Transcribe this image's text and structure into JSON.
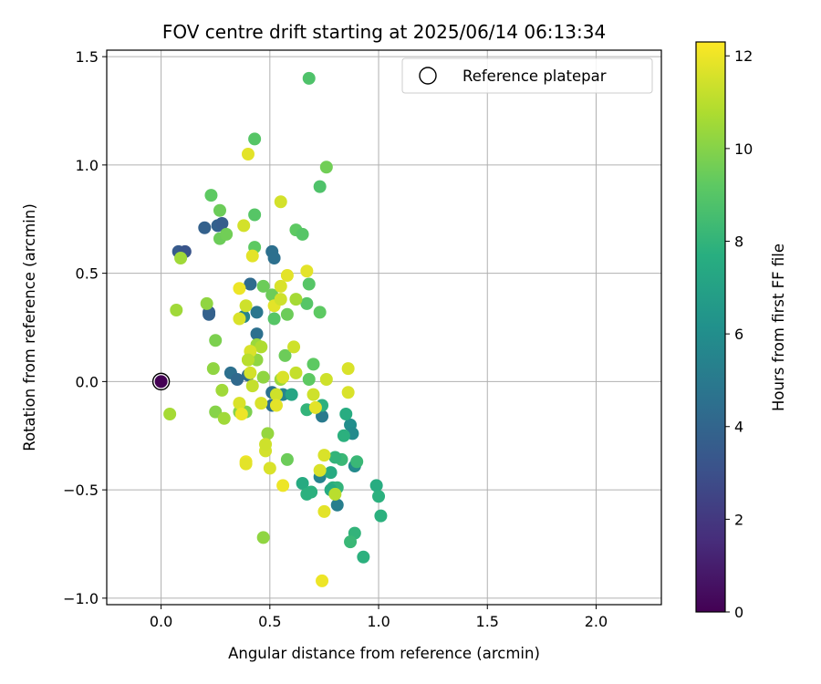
{
  "chart_data": {
    "type": "scatter",
    "title": "FOV centre drift starting at 2025/06/14 06:13:34",
    "xlabel": "Angular distance from reference (arcmin)",
    "ylabel": "Rotation from reference (arcmin)",
    "xlim": [
      -0.25,
      2.3
    ],
    "ylim": [
      -1.03,
      1.53
    ],
    "xticks": [
      0.0,
      0.5,
      1.0,
      1.5,
      2.0
    ],
    "xtick_labels": [
      "0.0",
      "0.5",
      "1.0",
      "1.5",
      "2.0"
    ],
    "yticks": [
      -1.0,
      -0.5,
      0.0,
      0.5,
      1.0,
      1.5
    ],
    "ytick_labels": [
      "−1.0",
      "−0.5",
      "0.0",
      "0.5",
      "1.0",
      "1.5"
    ],
    "grid": true,
    "legend": {
      "placement": "top-right",
      "entries": [
        "Reference platepar"
      ]
    },
    "colorbar": {
      "label": "Hours from first FF file",
      "range": [
        0,
        12.3
      ],
      "ticks": [
        0,
        2,
        4,
        6,
        8,
        10,
        12
      ],
      "tick_labels": [
        "0",
        "2",
        "4",
        "6",
        "8",
        "10",
        "12"
      ],
      "colormap": "viridis"
    },
    "reference_point": {
      "x": 0.0,
      "y": 0.0,
      "hours": 0.0
    },
    "points": [
      [
        0.08,
        0.6,
        3.5
      ],
      [
        0.11,
        0.6,
        3.2
      ],
      [
        0.22,
        0.32,
        3.6
      ],
      [
        0.22,
        0.31,
        3.8
      ],
      [
        0.26,
        0.72,
        3.8
      ],
      [
        0.28,
        0.73,
        3.6
      ],
      [
        0.2,
        0.71,
        3.8
      ],
      [
        0.32,
        0.04,
        4.5
      ],
      [
        0.35,
        0.01,
        4.2
      ],
      [
        0.4,
        0.03,
        4.3
      ],
      [
        0.41,
        0.45,
        3.8
      ],
      [
        0.44,
        0.32,
        4.8
      ],
      [
        0.44,
        0.22,
        4.5
      ],
      [
        0.51,
        0.6,
        4.5
      ],
      [
        0.52,
        0.57,
        4.5
      ],
      [
        0.51,
        -0.05,
        4.6
      ],
      [
        0.51,
        -0.11,
        4.5
      ],
      [
        0.56,
        -0.06,
        5.5
      ],
      [
        0.73,
        -0.44,
        5.5
      ],
      [
        0.74,
        -0.16,
        5.0
      ],
      [
        0.81,
        -0.57,
        5.2
      ],
      [
        0.87,
        -0.2,
        6.0
      ],
      [
        0.89,
        -0.39,
        5.8
      ],
      [
        0.88,
        -0.24,
        5.8
      ],
      [
        0.38,
        0.3,
        5.5
      ],
      [
        0.41,
        0.45,
        4.3
      ],
      [
        0.6,
        -0.06,
        7.2
      ],
      [
        0.65,
        -0.47,
        7.5
      ],
      [
        0.67,
        -0.52,
        7.8
      ],
      [
        0.69,
        -0.51,
        7.8
      ],
      [
        0.67,
        -0.13,
        8.0
      ],
      [
        0.74,
        -0.11,
        7.8
      ],
      [
        0.78,
        -0.42,
        7.5
      ],
      [
        0.79,
        -0.49,
        7.8
      ],
      [
        0.81,
        -0.49,
        8.0
      ],
      [
        0.83,
        -0.36,
        8.2
      ],
      [
        0.84,
        -0.25,
        7.8
      ],
      [
        0.85,
        -0.15,
        7.6
      ],
      [
        0.89,
        -0.7,
        8.0
      ],
      [
        0.87,
        -0.74,
        8.2
      ],
      [
        0.93,
        -0.81,
        7.8
      ],
      [
        0.9,
        -0.37,
        8.2
      ],
      [
        0.99,
        -0.48,
        7.6
      ],
      [
        1.0,
        -0.53,
        7.8
      ],
      [
        1.01,
        -0.62,
        7.8
      ],
      [
        0.8,
        -0.35,
        8.0
      ],
      [
        0.78,
        -0.5,
        7.5
      ],
      [
        0.73,
        0.9,
        8.8
      ],
      [
        0.68,
        1.4,
        8.8
      ],
      [
        0.43,
        1.12,
        9.0
      ],
      [
        0.23,
        0.86,
        9.2
      ],
      [
        0.27,
        0.79,
        9.5
      ],
      [
        0.27,
        0.66,
        9.5
      ],
      [
        0.3,
        0.68,
        9.6
      ],
      [
        0.43,
        0.77,
        9.0
      ],
      [
        0.43,
        0.62,
        9.2
      ],
      [
        0.47,
        0.44,
        9.5
      ],
      [
        0.51,
        0.4,
        9.5
      ],
      [
        0.52,
        0.29,
        9.0
      ],
      [
        0.62,
        0.7,
        9.2
      ],
      [
        0.65,
        0.68,
        9.0
      ],
      [
        0.67,
        0.36,
        9.0
      ],
      [
        0.68,
        0.45,
        9.0
      ],
      [
        0.73,
        0.32,
        9.2
      ],
      [
        0.57,
        0.12,
        9.5
      ],
      [
        0.58,
        0.31,
        9.5
      ],
      [
        0.7,
        0.08,
        9.2
      ],
      [
        0.68,
        0.01,
        9.2
      ],
      [
        0.76,
        0.99,
        9.6
      ],
      [
        0.58,
        -0.36,
        9.5
      ],
      [
        0.47,
        -0.72,
        10.2
      ],
      [
        0.49,
        -0.24,
        10.3
      ],
      [
        0.36,
        -0.14,
        10.0
      ],
      [
        0.39,
        -0.14,
        9.8
      ],
      [
        0.44,
        0.17,
        10.4
      ],
      [
        0.44,
        0.1,
        10.2
      ],
      [
        0.47,
        0.02,
        10.2
      ],
      [
        0.55,
        0.01,
        10.4
      ],
      [
        0.28,
        -0.04,
        10.5
      ],
      [
        0.25,
        0.19,
        9.8
      ],
      [
        0.24,
        0.06,
        10.2
      ],
      [
        0.21,
        0.36,
        10.2
      ],
      [
        0.07,
        0.33,
        10.5
      ],
      [
        0.09,
        0.57,
        10.5
      ],
      [
        0.04,
        -0.15,
        10.6
      ],
      [
        0.25,
        -0.14,
        10.0
      ],
      [
        0.29,
        -0.17,
        10.5
      ],
      [
        0.62,
        0.38,
        10.6
      ],
      [
        0.4,
        0.1,
        10.8
      ],
      [
        0.46,
        0.16,
        10.8
      ],
      [
        0.4,
        1.05,
        11.8
      ],
      [
        0.38,
        0.72,
        11.5
      ],
      [
        0.36,
        0.43,
        12.0
      ],
      [
        0.36,
        0.29,
        11.6
      ],
      [
        0.39,
        0.35,
        11.4
      ],
      [
        0.42,
        0.58,
        11.8
      ],
      [
        0.41,
        0.14,
        11.6
      ],
      [
        0.42,
        -0.02,
        11.2
      ],
      [
        0.41,
        0.04,
        11.5
      ],
      [
        0.46,
        -0.1,
        11.6
      ],
      [
        0.48,
        -0.32,
        11.5
      ],
      [
        0.48,
        -0.29,
        11.4
      ],
      [
        0.5,
        -0.4,
        11.6
      ],
      [
        0.52,
        0.35,
        11.8
      ],
      [
        0.55,
        0.83,
        11.5
      ],
      [
        0.55,
        0.44,
        11.6
      ],
      [
        0.55,
        0.38,
        11.4
      ],
      [
        0.58,
        0.49,
        11.8
      ],
      [
        0.61,
        0.16,
        11.4
      ],
      [
        0.62,
        0.04,
        11.2
      ],
      [
        0.67,
        0.51,
        11.8
      ],
      [
        0.7,
        -0.06,
        11.4
      ],
      [
        0.71,
        -0.12,
        11.8
      ],
      [
        0.73,
        -0.41,
        11.6
      ],
      [
        0.75,
        -0.34,
        11.6
      ],
      [
        0.75,
        -0.6,
        11.8
      ],
      [
        0.76,
        0.01,
        11.4
      ],
      [
        0.8,
        -0.52,
        11.0
      ],
      [
        0.86,
        0.06,
        11.6
      ],
      [
        0.86,
        -0.05,
        11.6
      ],
      [
        0.74,
        -0.92,
        12.0
      ],
      [
        0.36,
        -0.1,
        11.6
      ],
      [
        0.37,
        -0.15,
        12.0
      ],
      [
        0.39,
        -0.37,
        12.0
      ],
      [
        0.39,
        -0.38,
        11.8
      ],
      [
        0.53,
        -0.06,
        11.4
      ],
      [
        0.53,
        -0.11,
        11.8
      ],
      [
        0.56,
        -0.48,
        12.0
      ],
      [
        0.56,
        0.02,
        11.6
      ],
      [
        0.4,
        0.1,
        11.0
      ]
    ]
  }
}
